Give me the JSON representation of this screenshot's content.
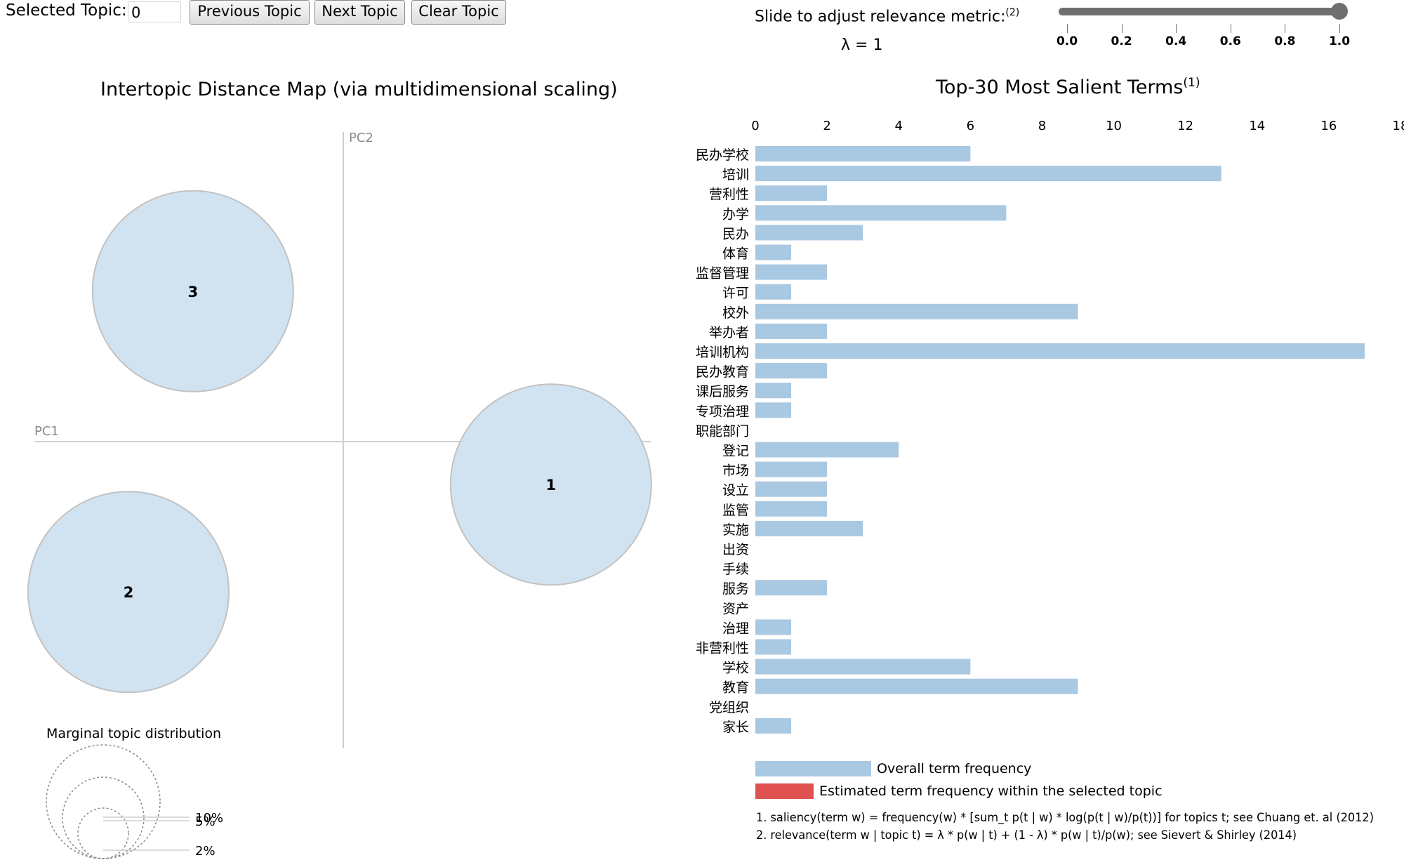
{
  "controls": {
    "selected_topic_label": "Selected Topic:",
    "selected_topic_value": "0",
    "prev_label": "Previous Topic",
    "next_label": "Next Topic",
    "clear_label": "Clear Topic"
  },
  "slider": {
    "title": "Slide to adjust relevance metric:",
    "title_note": "(2)",
    "lambda_text": "λ = 1",
    "value": 1.0,
    "ticks": [
      "0.0",
      "0.2",
      "0.4",
      "0.6",
      "0.8",
      "1.0"
    ]
  },
  "colors": {
    "overall": "#a9c8e2",
    "topic": "#e05252",
    "circle": "#cfe1f0",
    "circle_stroke": "#c2c2c2",
    "axis": "#cfcfcf"
  },
  "chart_data": [
    {
      "type": "scatter",
      "title": "Intertopic Distance Map (via multidimensional scaling)",
      "xlabel": "PC1",
      "ylabel": "PC2",
      "points": [
        {
          "label": "1",
          "x": 0.29,
          "y": -0.06,
          "size_pct": 33.3
        },
        {
          "label": "2",
          "x": -0.3,
          "y": -0.21,
          "size_pct": 33.3
        },
        {
          "label": "3",
          "x": -0.21,
          "y": 0.21,
          "size_pct": 33.3
        }
      ],
      "legend_title": "Marginal topic distribution",
      "legend_items": [
        "2%",
        "5%",
        "10%"
      ]
    },
    {
      "type": "bar",
      "orientation": "horizontal",
      "title": "Top-30 Most Salient Terms",
      "title_note": "(1)",
      "xlim": [
        0,
        18
      ],
      "ticks": [
        0,
        2,
        4,
        6,
        8,
        10,
        12,
        14,
        16,
        18
      ],
      "categories": [
        "民办学校",
        "培训",
        "营利性",
        "办学",
        "民办",
        "体育",
        "监督管理",
        "许可",
        "校外",
        "举办者",
        "培训机构",
        "民办教育",
        "课后服务",
        "专项治理",
        "职能部门",
        "登记",
        "市场",
        "设立",
        "监管",
        "实施",
        "出资",
        "手续",
        "服务",
        "资产",
        "治理",
        "非营利性",
        "学校",
        "教育",
        "党组织",
        "家长"
      ],
      "values": [
        6,
        13,
        2,
        7,
        3,
        1,
        2,
        1,
        9,
        2,
        17,
        2,
        1,
        1,
        0,
        4,
        2,
        2,
        2,
        3,
        0,
        0,
        2,
        0,
        1,
        1,
        6,
        9,
        0,
        1
      ],
      "legend": [
        "Overall term frequency",
        "Estimated term frequency within the selected topic"
      ],
      "footnotes": [
        "1. saliency(term w) = frequency(w) * [sum_t p(t | w) * log(p(t | w)/p(t))] for topics t; see Chuang et. al (2012)",
        "2. relevance(term w | topic t) = λ * p(w | t) + (1 - λ) * p(w | t)/p(w); see Sievert & Shirley (2014)"
      ]
    }
  ]
}
